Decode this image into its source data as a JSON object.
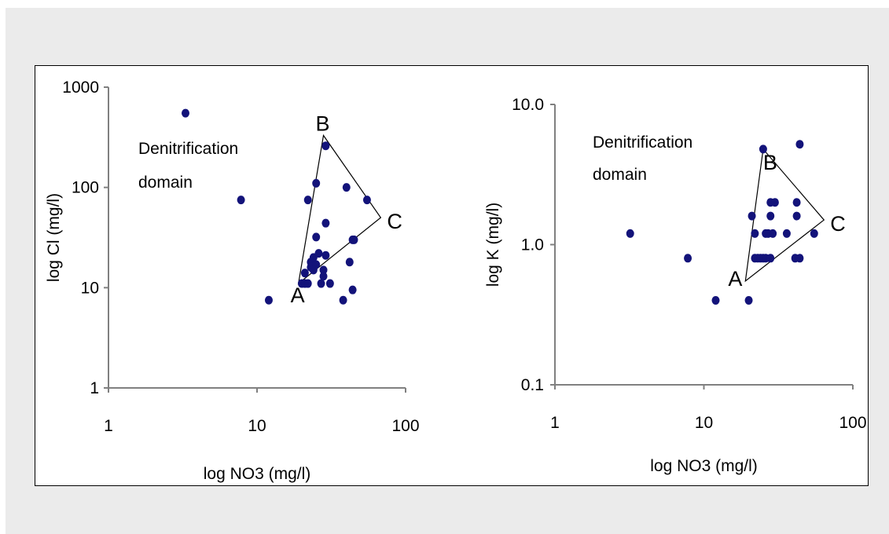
{
  "colors": {
    "point": "#13137a",
    "axis": "#808080",
    "outline": "#000000",
    "background": "#ebebeb"
  },
  "chart_data": [
    {
      "type": "scatter",
      "xscale": "log",
      "yscale": "log",
      "xlim": [
        1,
        100
      ],
      "ylim": [
        1,
        1000
      ],
      "xlabel": "log NO3 (mg/l)",
      "ylabel": "log Cl  (mg/l)",
      "xticks": [
        "1",
        "10",
        "100"
      ],
      "yticks": [
        "1",
        "10",
        "100",
        "1000"
      ],
      "annotation": [
        "Denitrification",
        "domain"
      ],
      "triangle": {
        "labels": [
          "A",
          "B",
          "C"
        ],
        "A": [
          19,
          11
        ],
        "B": [
          28,
          330
        ],
        "C": [
          68,
          50
        ]
      },
      "points": [
        [
          3.3,
          550
        ],
        [
          7.8,
          75
        ],
        [
          12,
          7.5
        ],
        [
          20,
          11
        ],
        [
          21,
          11
        ],
        [
          21,
          14
        ],
        [
          22,
          11
        ],
        [
          22,
          75
        ],
        [
          23,
          18
        ],
        [
          23,
          16
        ],
        [
          24,
          20
        ],
        [
          24,
          15
        ],
        [
          25,
          110
        ],
        [
          25,
          32
        ],
        [
          25,
          17
        ],
        [
          26,
          22
        ],
        [
          27,
          11
        ],
        [
          28,
          15
        ],
        [
          28,
          13
        ],
        [
          29,
          260
        ],
        [
          29,
          21
        ],
        [
          29,
          44
        ],
        [
          31,
          11
        ],
        [
          38,
          7.5
        ],
        [
          40,
          100
        ],
        [
          42,
          18
        ],
        [
          44,
          9.5
        ],
        [
          44,
          30
        ],
        [
          45,
          30
        ],
        [
          55,
          75
        ]
      ]
    },
    {
      "type": "scatter",
      "xscale": "log",
      "yscale": "log",
      "xlim": [
        1,
        100
      ],
      "ylim": [
        0.1,
        10
      ],
      "xlabel": "log NO3 (mg/l)",
      "ylabel": "log K  (mg/l)",
      "xticks": [
        "1",
        "10",
        "100"
      ],
      "yticks": [
        "0.1",
        "1.0",
        "10.0"
      ],
      "annotation": [
        "Denitrification",
        "domain"
      ],
      "triangle": {
        "labels": [
          "A",
          "B",
          "C"
        ],
        "A": [
          19,
          0.55
        ],
        "B": [
          25,
          4.8
        ],
        "C": [
          64,
          1.5
        ]
      },
      "points": [
        [
          3.2,
          1.2
        ],
        [
          7.8,
          0.8
        ],
        [
          12,
          0.4
        ],
        [
          20,
          0.4
        ],
        [
          21,
          1.6
        ],
        [
          22,
          1.2
        ],
        [
          22,
          0.8
        ],
        [
          23,
          0.8
        ],
        [
          24,
          0.8
        ],
        [
          25,
          4.8
        ],
        [
          25,
          0.8
        ],
        [
          26,
          1.2
        ],
        [
          26,
          0.8
        ],
        [
          27,
          1.2
        ],
        [
          28,
          2.0
        ],
        [
          28,
          0.8
        ],
        [
          28,
          1.6
        ],
        [
          29,
          1.2
        ],
        [
          30,
          2.0
        ],
        [
          36,
          1.2
        ],
        [
          41,
          0.8
        ],
        [
          42,
          1.6
        ],
        [
          42,
          2.0
        ],
        [
          44,
          5.2
        ],
        [
          44,
          0.8
        ],
        [
          55,
          1.2
        ]
      ]
    }
  ]
}
